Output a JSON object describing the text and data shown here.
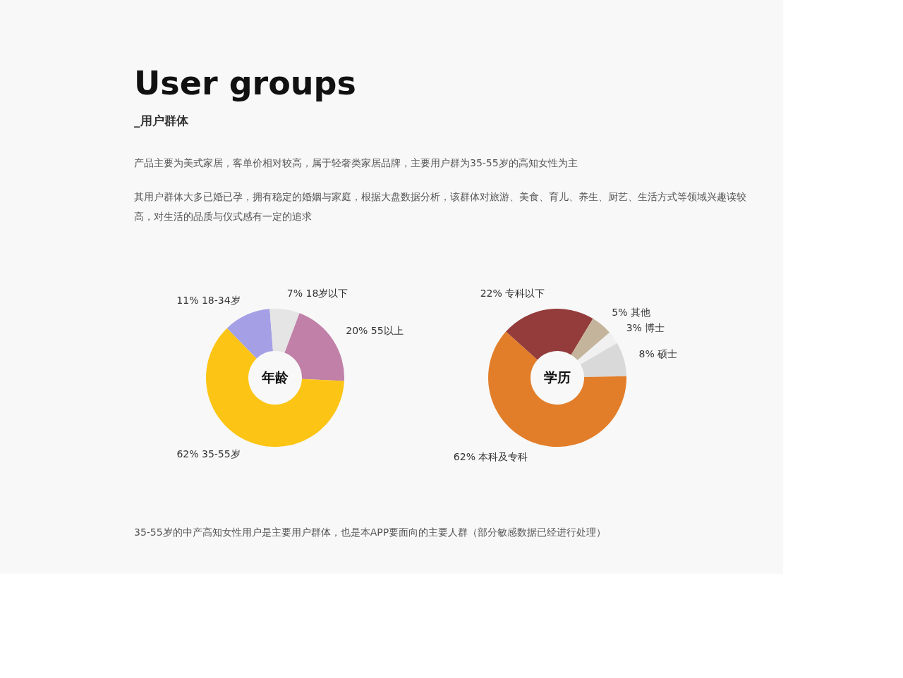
{
  "chart_data": [
    {
      "type": "other",
      "title": "User groups",
      "subtitle": "_用户群体",
      "annotations": [
        "产品主要为美式家居，客单价相对较高，属于轻奢类家居品牌，主要用户群为35-55岁的高知女性为主",
        "其用户群体大多已婚已孕，拥有稳定的婚姻与家庭，根据大盘数据分析，该群体对旅游、美食、育儿、养生、厨艺、生活方式等领域兴趣读较高，对生活的品质与仪式感有一定的追求"
      ]
    },
    {
      "type": "donut",
      "title": "年龄",
      "categories": [
        "18-34岁",
        "18岁以下",
        "55以上",
        "35-55岁"
      ],
      "values": [
        11,
        7,
        20,
        62
      ],
      "value_labels": [
        "11%",
        "7%",
        "20%",
        "62%"
      ],
      "colors": [
        "#a5a0e6",
        "#e5e5e5",
        "#c080a8",
        "#fcc515"
      ]
    },
    {
      "type": "donut",
      "title": "学历",
      "categories": [
        "专科以下",
        "其他",
        "博士",
        "硕士",
        "本科及专科"
      ],
      "values": [
        22,
        5,
        3,
        8,
        62
      ],
      "value_labels": [
        "22%",
        "5%",
        "3%",
        "8%",
        "62%"
      ],
      "colors": [
        "#943c3c",
        "#c4b49c",
        "#f0f0f0",
        "#d9d9d9",
        "#e27e2a"
      ]
    },
    {
      "type": "other",
      "annotations": [
        "35-55岁的中产高知女性用户是主要用户群体，也是本APP要面向的主要人群（部分敏感数据已经进行处理）"
      ]
    }
  ]
}
